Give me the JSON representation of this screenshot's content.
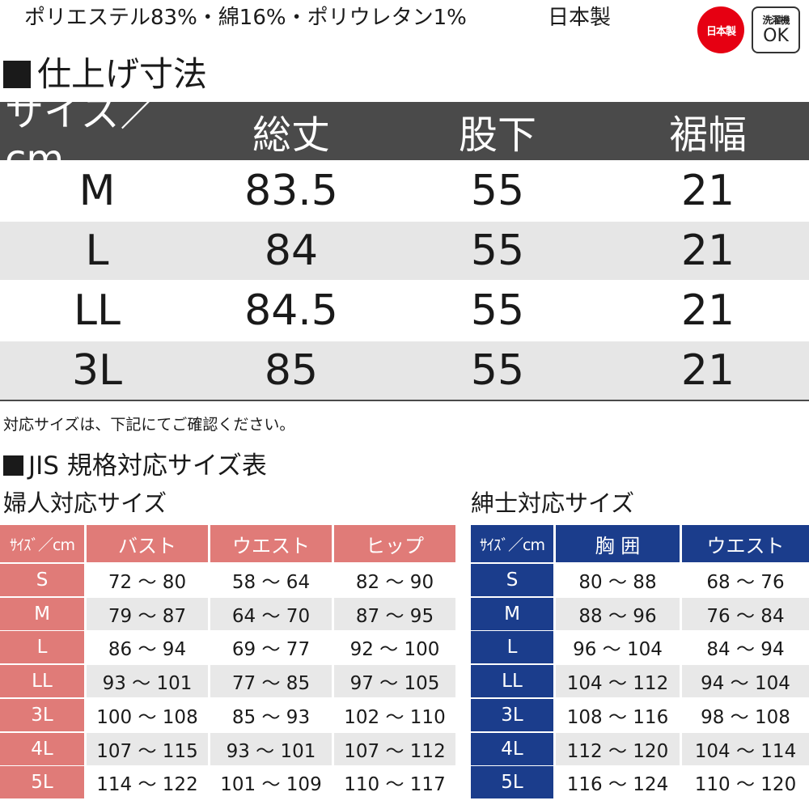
{
  "material": "ポリエステル83%・綿16%・ポリウレタン1%",
  "origin": "日本製",
  "badges": {
    "made_in_japan": "日本製",
    "washable_top": "洗濯機",
    "washable_bottom": "OK"
  },
  "colors": {
    "header_gray": "#4a4a4a",
    "women_accent": "#e07b78",
    "men_accent": "#1b3d8c",
    "alt_row": "#e6e6e6",
    "badge_red": "#e60012"
  },
  "finished_size": {
    "heading": "仕上げ寸法",
    "columns": [
      "サイズ／cm",
      "総丈",
      "股下",
      "裾幅"
    ],
    "rows": [
      [
        "M",
        "83.5",
        "55",
        "21"
      ],
      [
        "L",
        "84",
        "55",
        "21"
      ],
      [
        "LL",
        "84.5",
        "55",
        "21"
      ],
      [
        "3L",
        "85",
        "55",
        "21"
      ]
    ]
  },
  "note": "対応サイズは、下記にてご確認ください。",
  "jis": {
    "heading": "JIS 規格対応サイズ表",
    "women": {
      "title": "婦人対応サイズ",
      "columns": [
        "ｻｲｽﾞ／cm",
        "バスト",
        "ウエスト",
        "ヒップ"
      ],
      "rows": [
        [
          "S",
          "72 〜 80",
          "58 〜 64",
          "82 〜 90"
        ],
        [
          "M",
          "79 〜 87",
          "64 〜 70",
          "87 〜 95"
        ],
        [
          "L",
          "86 〜 94",
          "69 〜 77",
          "92 〜 100"
        ],
        [
          "LL",
          "93 〜 101",
          "77 〜 85",
          "97 〜 105"
        ],
        [
          "3L",
          "100 〜 108",
          "85 〜 93",
          "102 〜 110"
        ],
        [
          "4L",
          "107 〜 115",
          "93 〜 101",
          "107 〜 112"
        ],
        [
          "5L",
          "114 〜 122",
          "101 〜 109",
          "110 〜 117"
        ]
      ]
    },
    "men": {
      "title": "紳士対応サイズ",
      "columns": [
        "ｻｲｽﾞ／cm",
        "胸 囲",
        "ウエスト"
      ],
      "rows": [
        [
          "S",
          "80 〜 88",
          "68 〜 76"
        ],
        [
          "M",
          "88 〜 96",
          "76 〜 84"
        ],
        [
          "L",
          "96 〜 104",
          "84 〜 94"
        ],
        [
          "LL",
          "104 〜 112",
          "94 〜 104"
        ],
        [
          "3L",
          "108 〜 116",
          "98 〜 108"
        ],
        [
          "4L",
          "112 〜 120",
          "104 〜 114"
        ],
        [
          "5L",
          "116 〜 124",
          "110 〜 120"
        ]
      ]
    }
  }
}
